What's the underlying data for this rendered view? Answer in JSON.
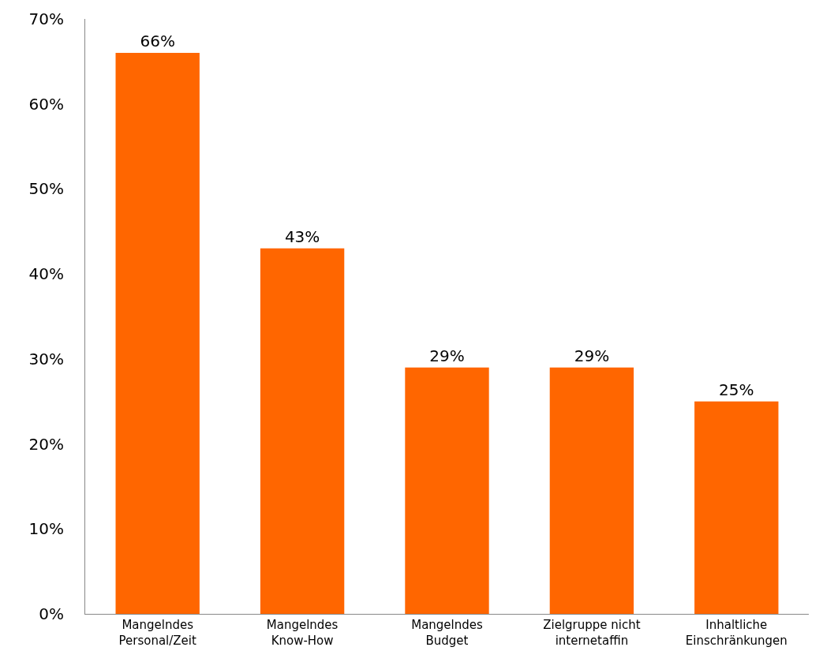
{
  "chart_data": {
    "type": "bar",
    "categories": [
      "Mangelndes\nPersonal/Zeit",
      "Mangelndes\nKnow-How",
      "Mangelndes\nBudget",
      "Zielgruppe nicht\ninternetaffin",
      "Inhaltliche\nEinschränkungen"
    ],
    "values": [
      66,
      43,
      29,
      29,
      25
    ],
    "value_labels": [
      "66%",
      "43%",
      "29%",
      "29%",
      "25%"
    ],
    "color": "#ff6600",
    "ylim": [
      0,
      70
    ],
    "yticks": [
      {
        "value": 0,
        "label": "0%"
      },
      {
        "value": 10,
        "label": "10%"
      },
      {
        "value": 20,
        "label": "20%"
      },
      {
        "value": 30,
        "label": "30%"
      },
      {
        "value": 40,
        "label": "40%"
      },
      {
        "value": 50,
        "label": "50%"
      },
      {
        "value": 60,
        "label": "60%"
      },
      {
        "value": 70,
        "label": "70%"
      }
    ],
    "grid": false
  }
}
